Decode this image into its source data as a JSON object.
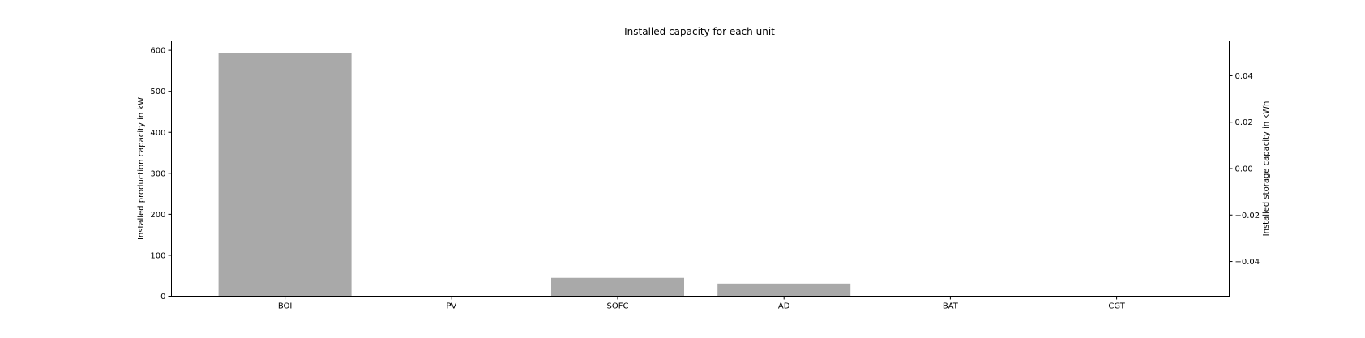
{
  "chart_data": {
    "type": "bar",
    "title": "Installed capacity for each unit",
    "categories": [
      "BOI",
      "PV",
      "SOFC",
      "AD",
      "BAT",
      "CGT"
    ],
    "values": [
      594,
      0,
      45,
      31,
      0,
      0
    ],
    "bar_color": "#a9a9a9",
    "ylabel": "Installed production capacity in kW",
    "ylim": [
      0,
      623
    ],
    "yticks": [
      "0",
      "100",
      "200",
      "300",
      "400",
      "500",
      "600"
    ],
    "y2label": "Installed storage capacity in kWh",
    "y2lim": [
      -0.055,
      0.055
    ],
    "y2ticks": [
      "−0.04",
      "−0.02",
      "0.00",
      "0.02",
      "0.04"
    ],
    "grid": false
  }
}
